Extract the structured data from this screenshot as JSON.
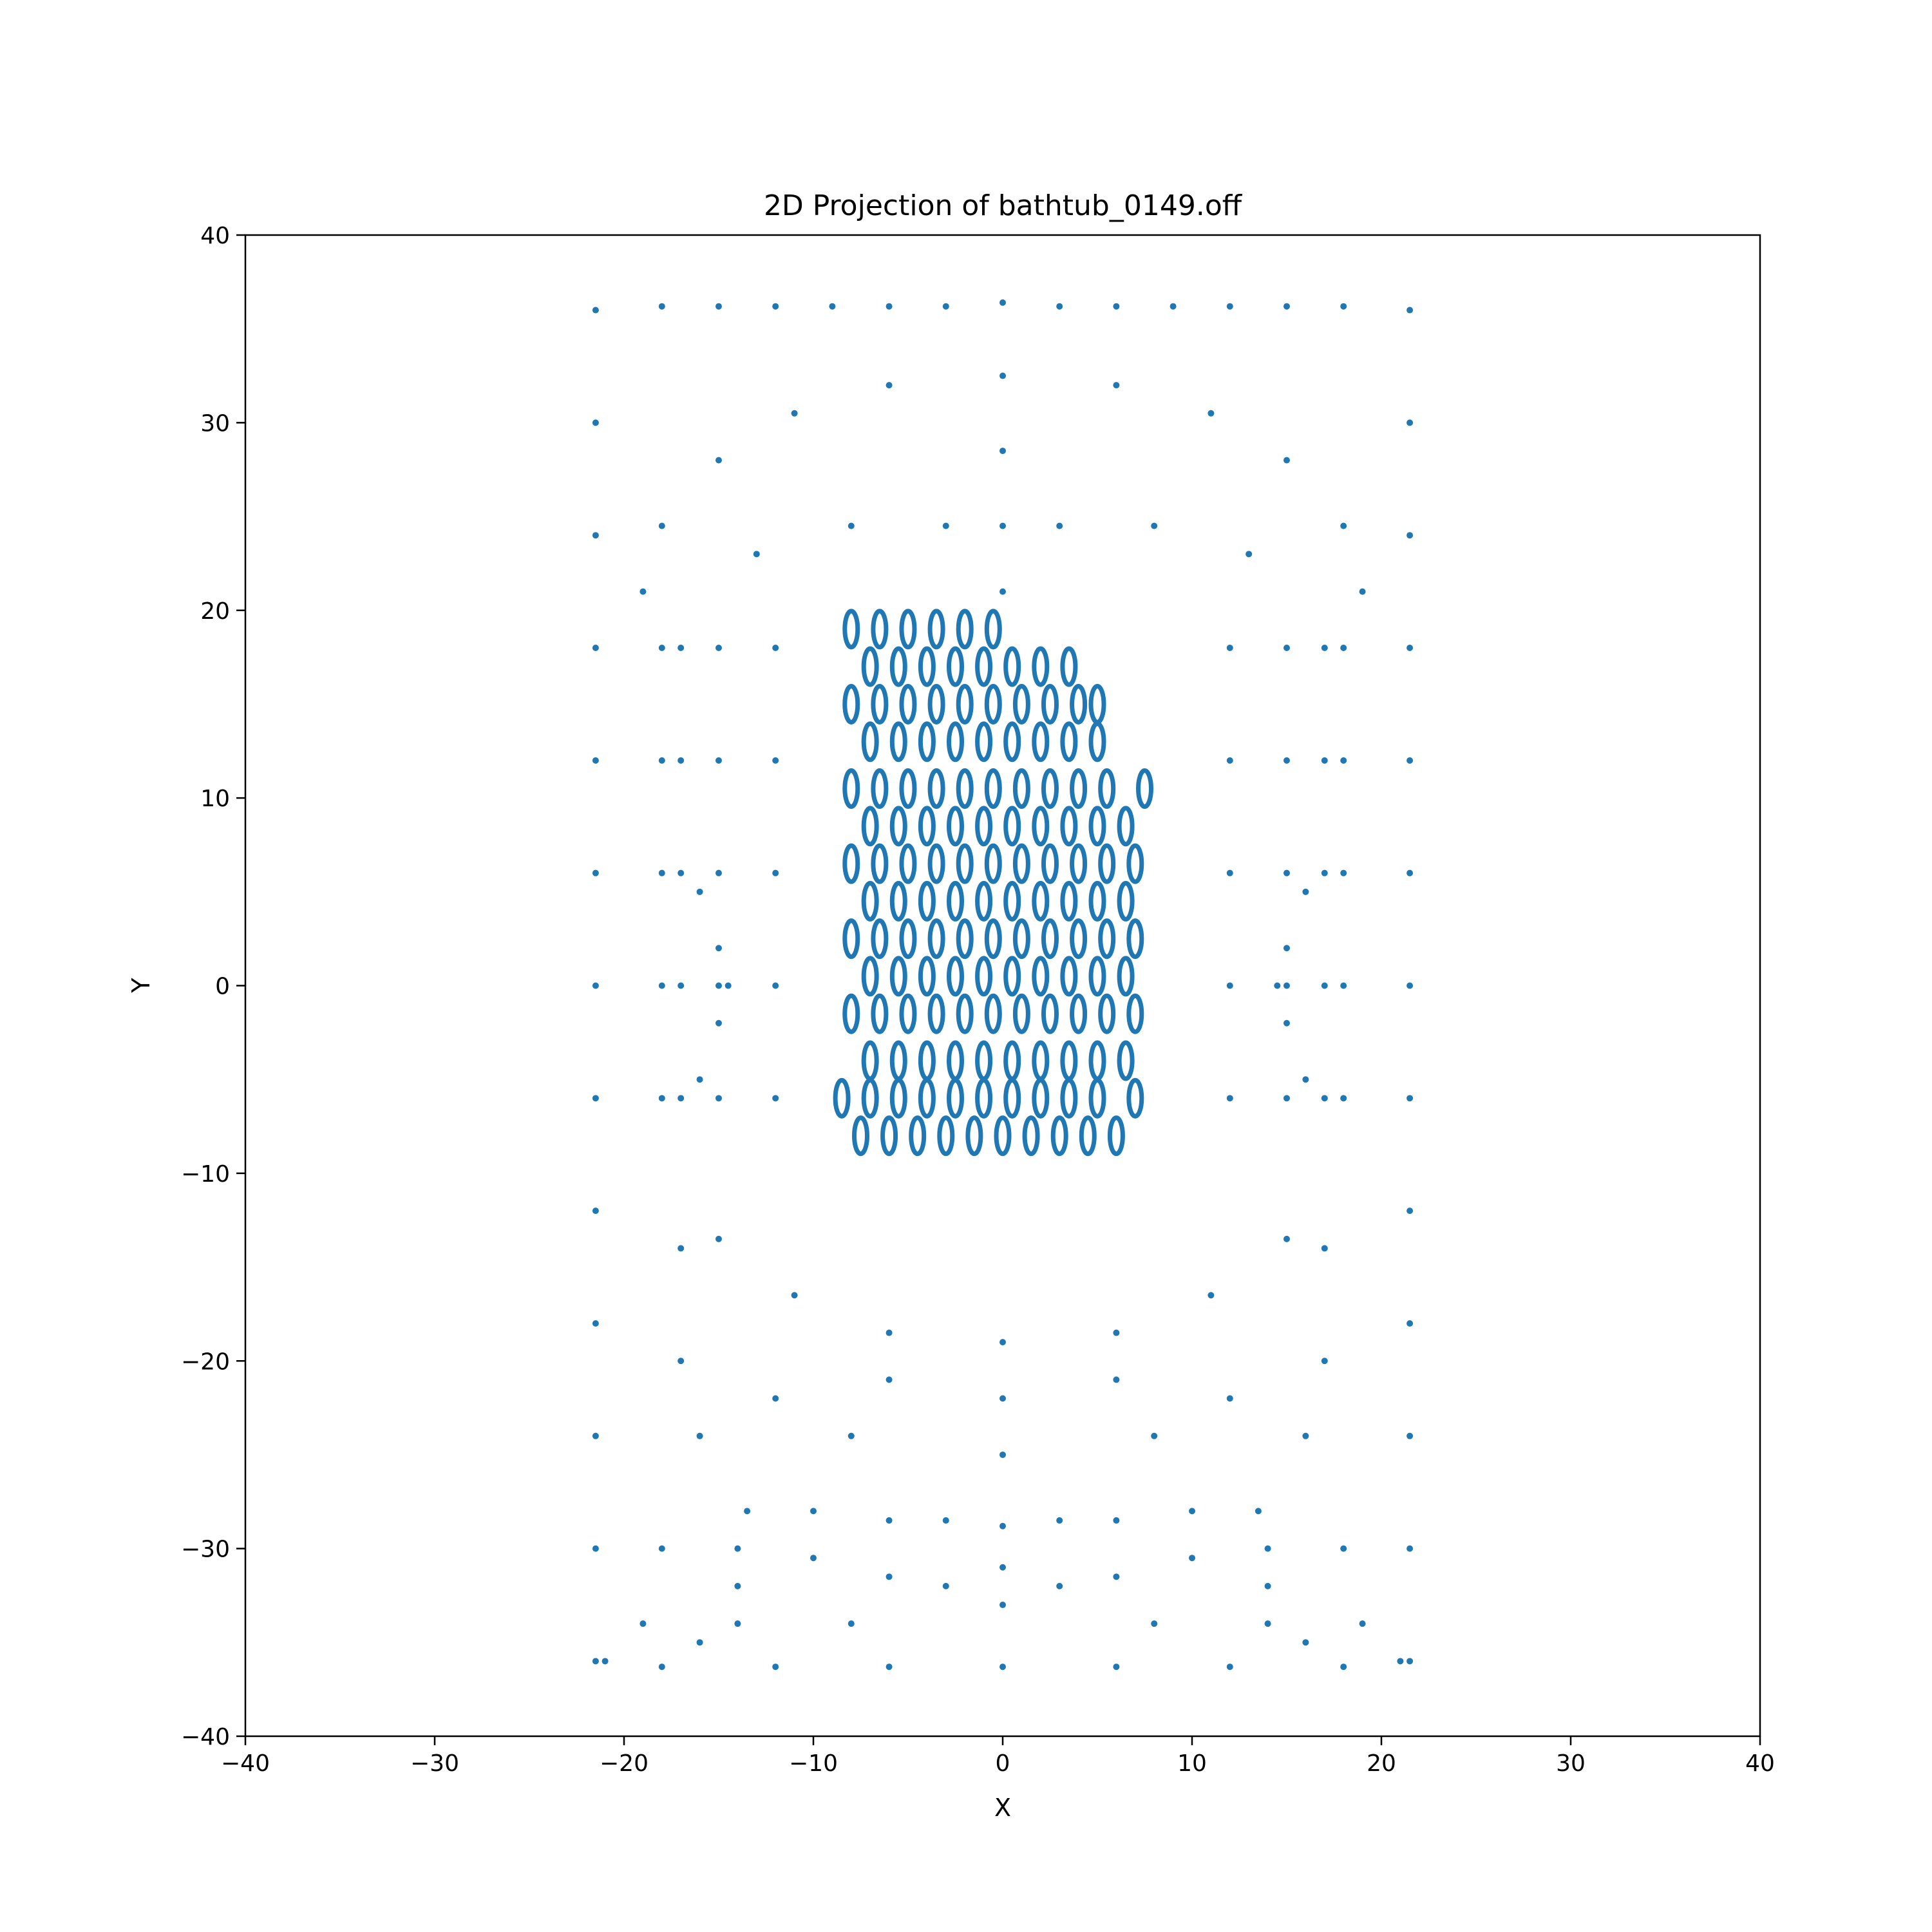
{
  "chart_data": {
    "type": "scatter",
    "title": "2D Projection of bathtub_0149.off",
    "xlabel": "X",
    "ylabel": "Y",
    "xlim": [
      -40,
      40
    ],
    "ylim": [
      -40,
      40
    ],
    "x_ticks": [
      -40,
      -30,
      -20,
      -10,
      0,
      10,
      20,
      30,
      40
    ],
    "y_ticks": [
      -40,
      -30,
      -20,
      -10,
      0,
      10,
      20,
      30,
      40
    ],
    "x_tick_labels": [
      "−40",
      "−30",
      "−20",
      "−10",
      "0",
      "10",
      "20",
      "30",
      "40"
    ],
    "y_tick_labels": [
      "−40",
      "−30",
      "−20",
      "−10",
      "0",
      "10",
      "20",
      "30",
      "40"
    ],
    "grid": false,
    "legend": "none",
    "marker_color": "#1f77b4",
    "series": [
      {
        "structure": "outer-rim",
        "points": [
          [
            -21.5,
            36
          ],
          [
            -18,
            36.2
          ],
          [
            -15,
            36.2
          ],
          [
            -12,
            36.2
          ],
          [
            -9,
            36.2
          ],
          [
            -6,
            36.2
          ],
          [
            -3,
            36.2
          ],
          [
            0,
            36.4
          ],
          [
            3,
            36.2
          ],
          [
            6,
            36.2
          ],
          [
            9,
            36.2
          ],
          [
            12,
            36.2
          ],
          [
            15,
            36.2
          ],
          [
            18,
            36.2
          ],
          [
            21.5,
            36
          ],
          [
            -21.5,
            30
          ],
          [
            -21.5,
            24
          ],
          [
            -21.5,
            18
          ],
          [
            -21.5,
            12
          ],
          [
            -21.5,
            6
          ],
          [
            -21.5,
            0
          ],
          [
            -21.5,
            -6
          ],
          [
            -21.5,
            -12
          ],
          [
            -21.5,
            -18
          ],
          [
            -21.5,
            -24
          ],
          [
            -21.5,
            -30
          ],
          [
            -21.5,
            -36
          ],
          [
            21.5,
            30
          ],
          [
            21.5,
            24
          ],
          [
            21.5,
            18
          ],
          [
            21.5,
            12
          ],
          [
            21.5,
            6
          ],
          [
            21.5,
            0
          ],
          [
            21.5,
            -6
          ],
          [
            21.5,
            -12
          ],
          [
            21.5,
            -18
          ],
          [
            21.5,
            -24
          ],
          [
            21.5,
            -30
          ],
          [
            21.5,
            -36
          ],
          [
            -18,
            -36.3
          ],
          [
            -12,
            -36.3
          ],
          [
            -6,
            -36.3
          ],
          [
            0,
            -36.3
          ],
          [
            6,
            -36.3
          ],
          [
            12,
            -36.3
          ],
          [
            18,
            -36.3
          ]
        ]
      },
      {
        "structure": "head-dome",
        "points": [
          [
            0,
            32.5
          ],
          [
            -6,
            32
          ],
          [
            6,
            32
          ],
          [
            -11,
            30.5
          ],
          [
            11,
            30.5
          ],
          [
            -15,
            28
          ],
          [
            15,
            28
          ],
          [
            -18,
            24.5
          ],
          [
            18,
            24.5
          ],
          [
            -19,
            21
          ],
          [
            19,
            21
          ],
          [
            0,
            24.5
          ],
          [
            -3,
            24.5
          ],
          [
            3,
            24.5
          ],
          [
            -8,
            24.5
          ],
          [
            8,
            24.5
          ],
          [
            -13,
            23
          ],
          [
            13,
            23
          ],
          [
            0,
            28.5
          ],
          [
            0,
            21
          ]
        ]
      },
      {
        "structure": "ellipse-grid",
        "points": [
          [
            -8,
            19
          ],
          [
            -6.5,
            19
          ],
          [
            -5,
            19
          ],
          [
            -3.5,
            19
          ],
          [
            -2,
            19
          ],
          [
            -0.5,
            19
          ],
          [
            -7,
            17
          ],
          [
            -5.5,
            17
          ],
          [
            -4,
            17
          ],
          [
            -2.5,
            17
          ],
          [
            -1,
            17
          ],
          [
            0.5,
            17
          ],
          [
            2,
            17
          ],
          [
            3.5,
            17
          ],
          [
            -8,
            15
          ],
          [
            -6.5,
            15
          ],
          [
            -5,
            15
          ],
          [
            -3.5,
            15
          ],
          [
            -2,
            15
          ],
          [
            -0.5,
            15
          ],
          [
            1,
            15
          ],
          [
            2.5,
            15
          ],
          [
            4,
            15
          ],
          [
            5,
            15
          ],
          [
            -7,
            13
          ],
          [
            -5.5,
            13
          ],
          [
            -4,
            13
          ],
          [
            -2.5,
            13
          ],
          [
            -1,
            13
          ],
          [
            0.5,
            13
          ],
          [
            2,
            13
          ],
          [
            3.5,
            13
          ],
          [
            5,
            13
          ],
          [
            -8,
            10.5
          ],
          [
            -6.5,
            10.5
          ],
          [
            -5,
            10.5
          ],
          [
            -3.5,
            10.5
          ],
          [
            -2,
            10.5
          ],
          [
            -0.5,
            10.5
          ],
          [
            1,
            10.5
          ],
          [
            2.5,
            10.5
          ],
          [
            4,
            10.5
          ],
          [
            5.5,
            10.5
          ],
          [
            7.5,
            10.5
          ],
          [
            -7,
            8.5
          ],
          [
            -5.5,
            8.5
          ],
          [
            -4,
            8.5
          ],
          [
            -2.5,
            8.5
          ],
          [
            -1,
            8.5
          ],
          [
            0.5,
            8.5
          ],
          [
            2,
            8.5
          ],
          [
            3.5,
            8.5
          ],
          [
            5,
            8.5
          ],
          [
            6.5,
            8.5
          ],
          [
            -8,
            6.5
          ],
          [
            -6.5,
            6.5
          ],
          [
            -5,
            6.5
          ],
          [
            -3.5,
            6.5
          ],
          [
            -2,
            6.5
          ],
          [
            -0.5,
            6.5
          ],
          [
            1,
            6.5
          ],
          [
            2.5,
            6.5
          ],
          [
            4,
            6.5
          ],
          [
            5.5,
            6.5
          ],
          [
            7,
            6.5
          ],
          [
            -7,
            4.5
          ],
          [
            -5.5,
            4.5
          ],
          [
            -4,
            4.5
          ],
          [
            -2.5,
            4.5
          ],
          [
            -1,
            4.5
          ],
          [
            0.5,
            4.5
          ],
          [
            2,
            4.5
          ],
          [
            3.5,
            4.5
          ],
          [
            5,
            4.5
          ],
          [
            6.5,
            4.5
          ],
          [
            -8,
            2.5
          ],
          [
            -6.5,
            2.5
          ],
          [
            -5,
            2.5
          ],
          [
            -3.5,
            2.5
          ],
          [
            -2,
            2.5
          ],
          [
            -0.5,
            2.5
          ],
          [
            1,
            2.5
          ],
          [
            2.5,
            2.5
          ],
          [
            4,
            2.5
          ],
          [
            5.5,
            2.5
          ],
          [
            7,
            2.5
          ],
          [
            -7,
            0.5
          ],
          [
            -5.5,
            0.5
          ],
          [
            -4,
            0.5
          ],
          [
            -2.5,
            0.5
          ],
          [
            -1,
            0.5
          ],
          [
            0.5,
            0.5
          ],
          [
            2,
            0.5
          ],
          [
            3.5,
            0.5
          ],
          [
            5,
            0.5
          ],
          [
            6.5,
            0.5
          ],
          [
            -8,
            -1.5
          ],
          [
            -6.5,
            -1.5
          ],
          [
            -5,
            -1.5
          ],
          [
            -3.5,
            -1.5
          ],
          [
            -2,
            -1.5
          ],
          [
            -0.5,
            -1.5
          ],
          [
            1,
            -1.5
          ],
          [
            2.5,
            -1.5
          ],
          [
            4,
            -1.5
          ],
          [
            5.5,
            -1.5
          ],
          [
            7,
            -1.5
          ],
          [
            -7,
            -4
          ],
          [
            -5.5,
            -4
          ],
          [
            -4,
            -4
          ],
          [
            -2.5,
            -4
          ],
          [
            -1,
            -4
          ],
          [
            0.5,
            -4
          ],
          [
            2,
            -4
          ],
          [
            3.5,
            -4
          ],
          [
            5,
            -4
          ],
          [
            6.5,
            -4
          ],
          [
            -8.5,
            -6
          ],
          [
            -7,
            -6
          ],
          [
            -5.5,
            -6
          ],
          [
            -4,
            -6
          ],
          [
            -2.5,
            -6
          ],
          [
            -1,
            -6
          ],
          [
            0.5,
            -6
          ],
          [
            2,
            -6
          ],
          [
            3.5,
            -6
          ],
          [
            5,
            -6
          ],
          [
            7,
            -6
          ],
          [
            -7.5,
            -8
          ],
          [
            -6,
            -8
          ],
          [
            -4.5,
            -8
          ],
          [
            -3,
            -8
          ],
          [
            -1.5,
            -8
          ],
          [
            0,
            -8
          ],
          [
            1.5,
            -8
          ],
          [
            3,
            -8
          ],
          [
            4.5,
            -8
          ],
          [
            6,
            -8
          ]
        ]
      },
      {
        "structure": "side-walls",
        "points": [
          [
            -18,
            18
          ],
          [
            -18,
            12
          ],
          [
            -18,
            6
          ],
          [
            -18,
            0
          ],
          [
            -18,
            -6
          ],
          [
            -17,
            18
          ],
          [
            -17,
            12
          ],
          [
            -17,
            6
          ],
          [
            -17,
            0
          ],
          [
            -17,
            -6
          ],
          [
            -15,
            18
          ],
          [
            -15,
            12
          ],
          [
            -15,
            6
          ],
          [
            -15,
            0
          ],
          [
            -15,
            -6
          ],
          [
            -12,
            18
          ],
          [
            -12,
            12
          ],
          [
            -12,
            6
          ],
          [
            -12,
            0
          ],
          [
            -12,
            -6
          ],
          [
            18,
            18
          ],
          [
            18,
            12
          ],
          [
            18,
            6
          ],
          [
            18,
            0
          ],
          [
            18,
            -6
          ],
          [
            17,
            18
          ],
          [
            17,
            12
          ],
          [
            17,
            6
          ],
          [
            17,
            0
          ],
          [
            17,
            -6
          ],
          [
            15,
            18
          ],
          [
            15,
            12
          ],
          [
            15,
            6
          ],
          [
            15,
            0
          ],
          [
            15,
            -6
          ],
          [
            12,
            18
          ],
          [
            12,
            12
          ],
          [
            12,
            6
          ],
          [
            12,
            0
          ],
          [
            12,
            -6
          ],
          [
            -16,
            5
          ],
          [
            -15,
            2
          ],
          [
            -14.5,
            0
          ],
          [
            -15,
            -2
          ],
          [
            -16,
            -5
          ],
          [
            16,
            5
          ],
          [
            15,
            2
          ],
          [
            14.5,
            0
          ],
          [
            15,
            -2
          ],
          [
            16,
            -5
          ]
        ]
      },
      {
        "structure": "foot-dome",
        "points": [
          [
            0,
            -19
          ],
          [
            -6,
            -18.5
          ],
          [
            6,
            -18.5
          ],
          [
            -11,
            -16.5
          ],
          [
            11,
            -16.5
          ],
          [
            -15,
            -13.5
          ],
          [
            15,
            -13.5
          ],
          [
            -17,
            -14
          ],
          [
            17,
            -14
          ],
          [
            -17,
            -20
          ],
          [
            17,
            -20
          ],
          [
            -16,
            -24
          ],
          [
            16,
            -24
          ],
          [
            -12,
            -22
          ],
          [
            12,
            -22
          ],
          [
            -6,
            -21
          ],
          [
            6,
            -21
          ],
          [
            0,
            -22
          ],
          [
            0,
            -25
          ],
          [
            -8,
            -24
          ],
          [
            8,
            -24
          ]
        ]
      },
      {
        "structure": "drain-rail",
        "points": [
          [
            -13.5,
            -28
          ],
          [
            -10,
            -28
          ],
          [
            -6,
            -28.5
          ],
          [
            -3,
            -28.5
          ],
          [
            0,
            -28.8
          ],
          [
            3,
            -28.5
          ],
          [
            6,
            -28.5
          ],
          [
            10,
            -28
          ],
          [
            13.5,
            -28
          ],
          [
            -14,
            -30
          ],
          [
            -14,
            -32
          ],
          [
            -14,
            -34
          ],
          [
            14,
            -30
          ],
          [
            14,
            -32
          ],
          [
            14,
            -34
          ],
          [
            -6,
            -31.5
          ],
          [
            6,
            -31.5
          ],
          [
            0,
            -31
          ],
          [
            0,
            -33
          ],
          [
            -3,
            -32
          ],
          [
            3,
            -32
          ],
          [
            -10,
            -30.5
          ],
          [
            10,
            -30.5
          ],
          [
            -18,
            -30
          ],
          [
            18,
            -30
          ],
          [
            -19,
            -34
          ],
          [
            19,
            -34
          ],
          [
            -21,
            -36
          ],
          [
            21,
            -36
          ],
          [
            -16,
            -35
          ],
          [
            16,
            -35
          ],
          [
            -8,
            -34
          ],
          [
            8,
            -34
          ]
        ]
      }
    ]
  }
}
